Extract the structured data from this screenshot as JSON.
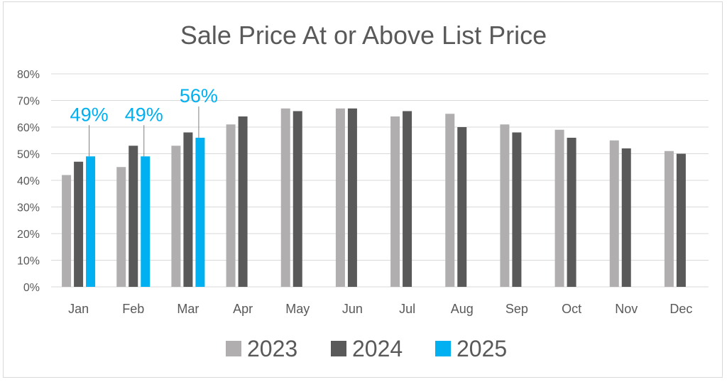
{
  "chart_data": {
    "type": "bar",
    "title": "Sale Price At or Above List Price",
    "categories": [
      "Jan",
      "Feb",
      "Mar",
      "Apr",
      "May",
      "Jun",
      "Jul",
      "Aug",
      "Sep",
      "Oct",
      "Nov",
      "Dec"
    ],
    "series": [
      {
        "name": "2023",
        "color": "#b0aeae",
        "values": [
          42,
          45,
          53,
          61,
          67,
          67,
          64,
          65,
          61,
          59,
          55,
          51
        ]
      },
      {
        "name": "2024",
        "color": "#595959",
        "values": [
          47,
          53,
          58,
          64,
          66,
          67,
          66,
          60,
          58,
          56,
          52,
          50
        ]
      },
      {
        "name": "2025",
        "color": "#00b0f0",
        "values": [
          49,
          49,
          56,
          null,
          null,
          null,
          null,
          null,
          null,
          null,
          null,
          null
        ]
      }
    ],
    "data_labels": [
      {
        "series": "2025",
        "category": "Jan",
        "text": "49%"
      },
      {
        "series": "2025",
        "category": "Feb",
        "text": "49%"
      },
      {
        "series": "2025",
        "category": "Mar",
        "text": "56%"
      }
    ],
    "ylim": [
      0,
      80
    ],
    "yticks": [
      "0%",
      "10%",
      "20%",
      "30%",
      "40%",
      "50%",
      "60%",
      "70%",
      "80%"
    ],
    "grid": true,
    "legend_position": "bottom",
    "xlabel": "",
    "ylabel": "",
    "colors": {
      "gridline": "#d9d9d9",
      "axis_text": "#595959",
      "title": "#595959",
      "label": "#00b0f0"
    }
  }
}
